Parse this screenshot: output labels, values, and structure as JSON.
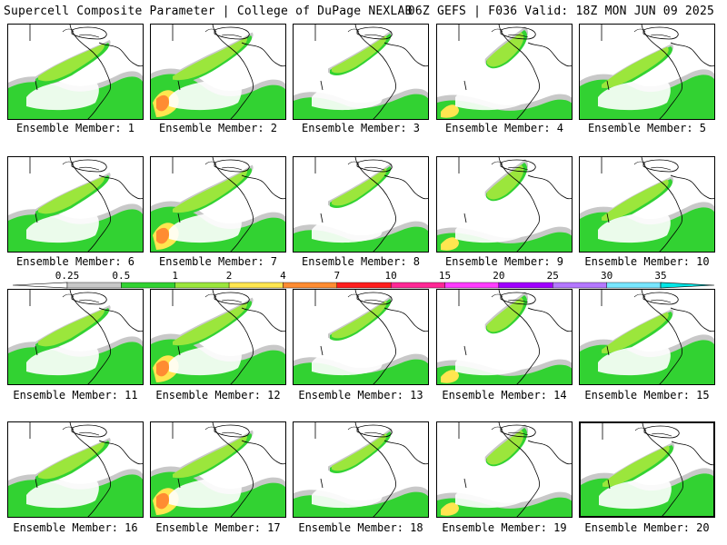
{
  "header": {
    "left": "Supercell Composite Parameter | College of DuPage NEXLAB",
    "right": "06Z GEFS | F036 Valid: 18Z MON JUN 09 2025"
  },
  "legend": {
    "thresholds": [
      "0.25",
      "0.5",
      "1",
      "2",
      "4",
      "7",
      "10",
      "15",
      "20",
      "25",
      "30",
      "35"
    ],
    "colors": [
      "#ffffff",
      "#c8c8c8",
      "#32d232",
      "#9be63c",
      "#ffe650",
      "#ff8c32",
      "#ff1e1e",
      "#ff2896",
      "#ff3cff",
      "#a000ff",
      "#b478ff",
      "#78e6ff",
      "#00e6e6"
    ]
  },
  "members": [
    {
      "label": "Ensemble Member: 1"
    },
    {
      "label": "Ensemble Member: 2"
    },
    {
      "label": "Ensemble Member: 3"
    },
    {
      "label": "Ensemble Member: 4"
    },
    {
      "label": "Ensemble Member: 5"
    },
    {
      "label": "Ensemble Member: 6"
    },
    {
      "label": "Ensemble Member: 7"
    },
    {
      "label": "Ensemble Member: 8"
    },
    {
      "label": "Ensemble Member: 9"
    },
    {
      "label": "Ensemble Member: 10"
    },
    {
      "label": "Ensemble Member: 11"
    },
    {
      "label": "Ensemble Member: 12"
    },
    {
      "label": "Ensemble Member: 13"
    },
    {
      "label": "Ensemble Member: 14"
    },
    {
      "label": "Ensemble Member: 15"
    },
    {
      "label": "Ensemble Member: 16"
    },
    {
      "label": "Ensemble Member: 17"
    },
    {
      "label": "Ensemble Member: 18"
    },
    {
      "label": "Ensemble Member: 19"
    },
    {
      "label": "Ensemble Member: 20"
    }
  ]
}
